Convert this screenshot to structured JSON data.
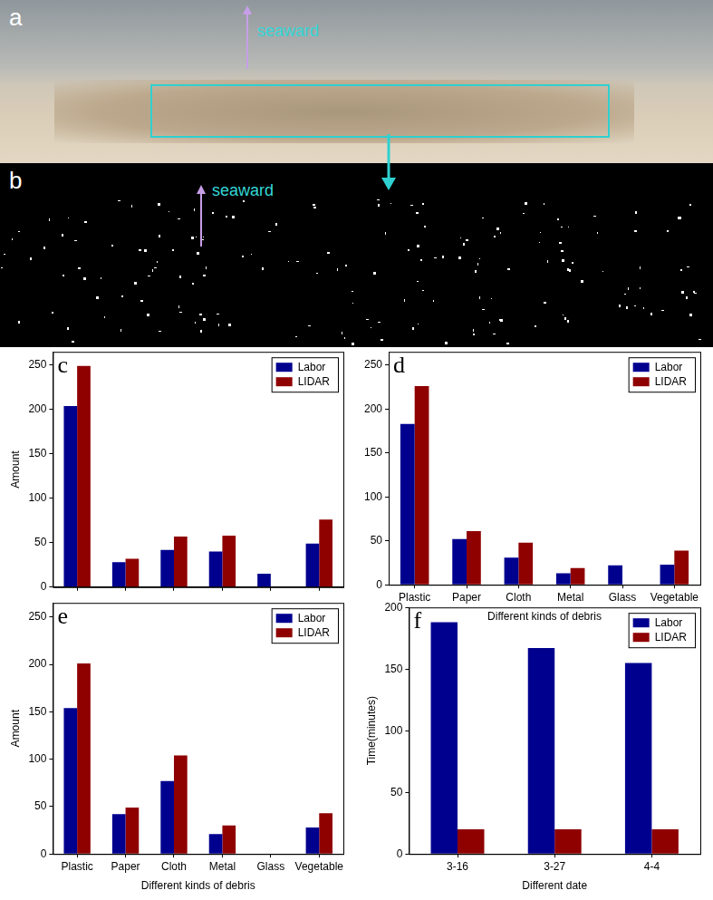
{
  "images": [
    {
      "label": "a",
      "arrow_text": "seaward"
    },
    {
      "label": "b",
      "arrow_text": "seaward"
    }
  ],
  "chart_data": [
    {
      "type": "bar",
      "title": "c",
      "ylabel": "Amount",
      "categories": [
        null,
        null,
        null,
        null,
        null,
        null
      ],
      "series": [
        {
          "name": "Labor",
          "color": "#00008f",
          "values": [
            204,
            28,
            42,
            40,
            15,
            49
          ]
        },
        {
          "name": "LIDAR",
          "color": "#8f0000",
          "values": [
            249,
            32,
            57,
            58,
            0,
            76
          ]
        }
      ],
      "ylim": [
        0,
        265
      ],
      "yticks": [
        0,
        50,
        100,
        150,
        200,
        250
      ],
      "grid": false,
      "legend": "upper right",
      "tick_labels": "y"
    },
    {
      "type": "bar",
      "title": "d",
      "xlabel": "Different kinds of debris",
      "categories": [
        "Plastic",
        "Paper",
        "Cloth",
        "Metal",
        "Glass",
        "Vegetable"
      ],
      "series": [
        {
          "name": "Labor",
          "color": "#00008f",
          "values": [
            183,
            52,
            31,
            13,
            22,
            23
          ]
        },
        {
          "name": "LIDAR",
          "color": "#8f0000",
          "values": [
            226,
            61,
            48,
            19,
            0,
            39
          ]
        }
      ],
      "ylim": [
        0,
        265
      ],
      "yticks": [
        0,
        50,
        100,
        150,
        200,
        250
      ],
      "grid": false,
      "legend": "upper right"
    },
    {
      "type": "bar",
      "title": "e",
      "xlabel": "Different kinds of debris",
      "ylabel": "Amount",
      "categories": [
        "Plastic",
        "Paper",
        "Cloth",
        "Metal",
        "Glass",
        "Vegetable"
      ],
      "series": [
        {
          "name": "Labor",
          "color": "#00008f",
          "values": [
            154,
            42,
            77,
            21,
            0,
            28
          ]
        },
        {
          "name": "LIDAR",
          "color": "#8f0000",
          "values": [
            201,
            49,
            104,
            30,
            0,
            43
          ]
        }
      ],
      "ylim": [
        0,
        265
      ],
      "yticks": [
        0,
        50,
        100,
        150,
        200,
        250
      ],
      "grid": false,
      "legend": "upper right"
    },
    {
      "type": "bar",
      "title": "f",
      "xlabel": "Different date",
      "ylabel": "Time(minutes)",
      "categories": [
        "3-16",
        "3-27",
        "4-4"
      ],
      "series": [
        {
          "name": "Labor",
          "color": "#00008f",
          "values": [
            188,
            167,
            155
          ]
        },
        {
          "name": "LIDAR",
          "color": "#8f0000",
          "values": [
            20,
            20,
            20
          ]
        }
      ],
      "ylim": [
        0,
        200
      ],
      "yticks": [
        0,
        50,
        100,
        150,
        200
      ],
      "grid": false,
      "legend": "upper right"
    }
  ]
}
